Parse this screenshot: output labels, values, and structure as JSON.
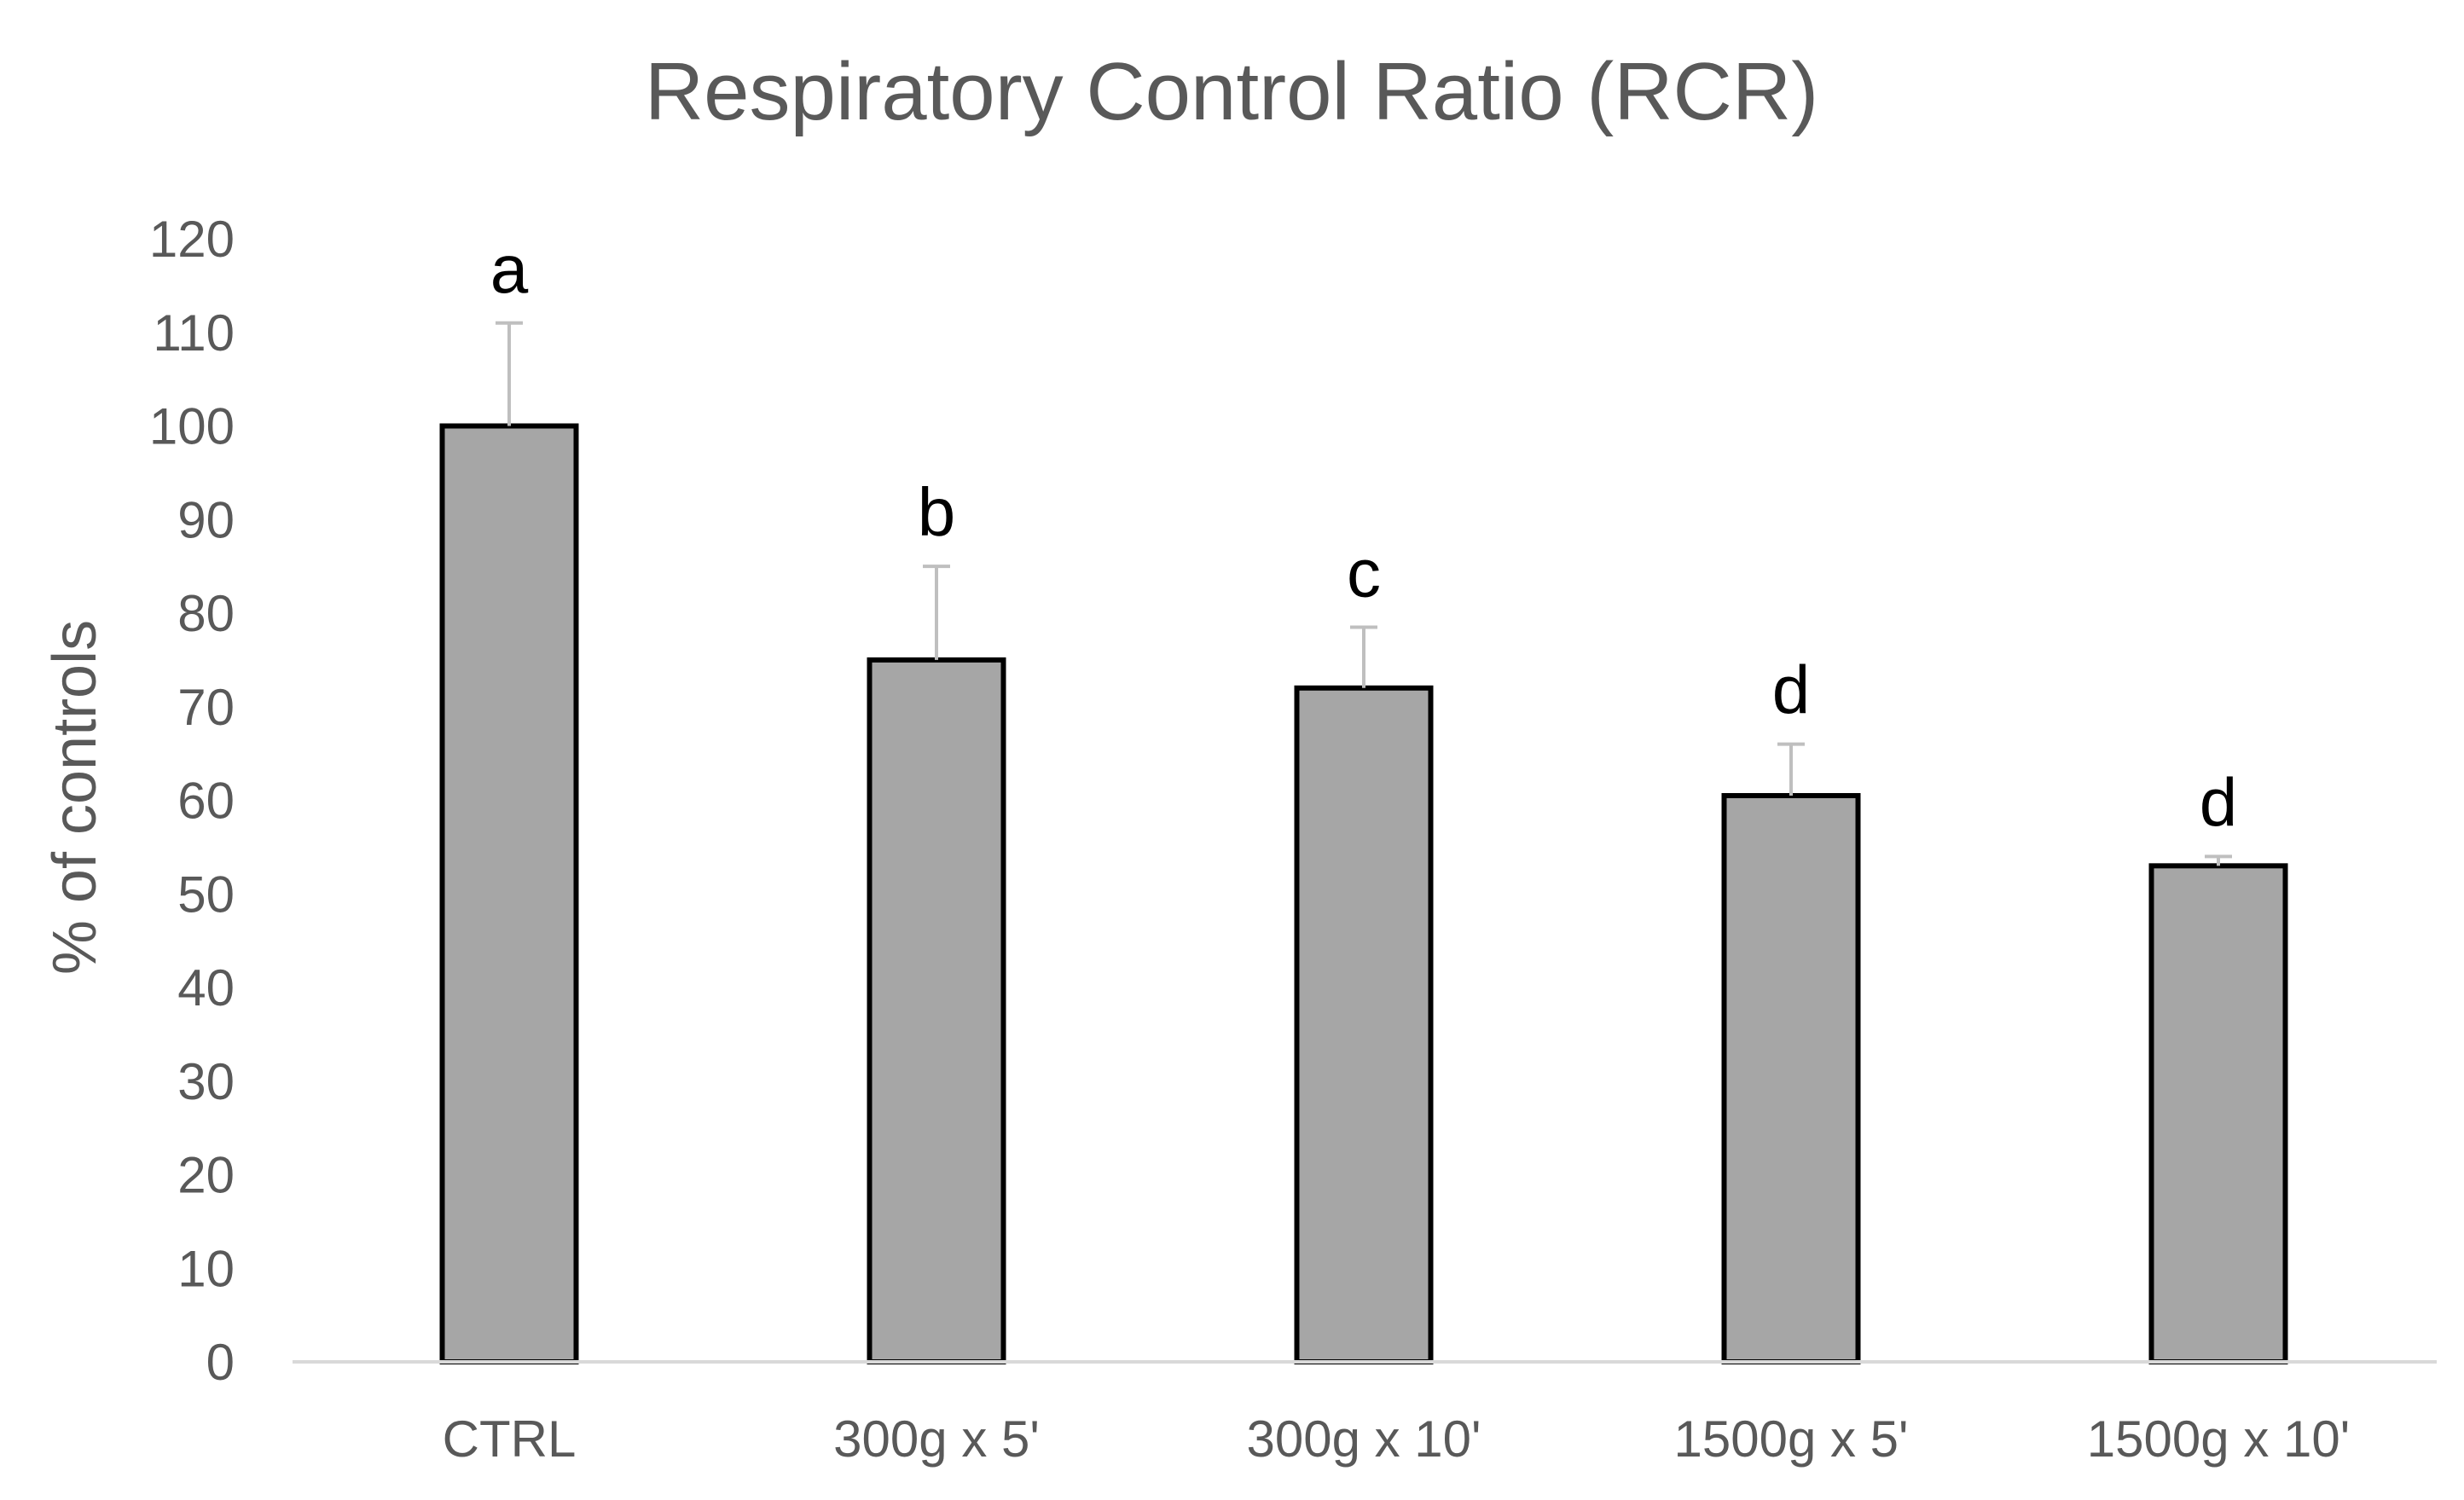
{
  "chart_data": {
    "type": "bar",
    "title": "Respiratory Control Ratio (RCR)",
    "xlabel": "",
    "ylabel": "% of controls",
    "ylim": [
      0,
      120
    ],
    "yticks": [
      "0",
      "10",
      "20",
      "30",
      "40",
      "50",
      "60",
      "70",
      "80",
      "90",
      "100",
      "110",
      "120"
    ],
    "grid": false,
    "categories": [
      "CTRL",
      "300g x 5'",
      "300g x 10'",
      "1500g x 5'",
      "1500g x 10'"
    ],
    "values": [
      100,
      75,
      72,
      60.5,
      53
    ],
    "error_upper": [
      11,
      10,
      6.5,
      5.5,
      1
    ],
    "significance_letters": [
      "a",
      "b",
      "c",
      "d",
      "d"
    ],
    "colors": {
      "bar_fill": "#a6a6a6",
      "bar_stroke": "#000000",
      "error_bar": "#bfbfbf",
      "axis": "#d9d9d9",
      "text": "#595959"
    }
  }
}
